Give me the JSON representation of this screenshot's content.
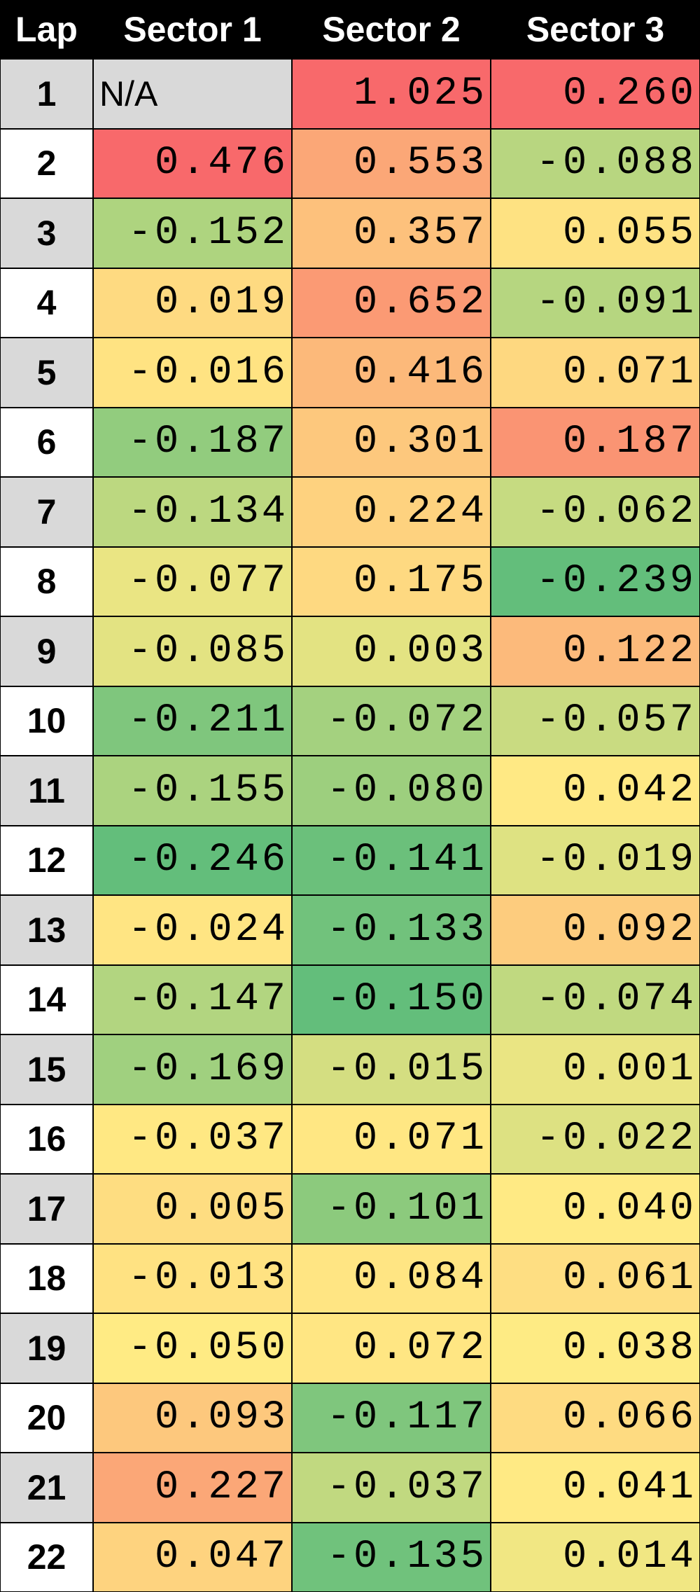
{
  "table": {
    "header": [
      "Lap",
      "Sector 1",
      "Sector 2",
      "Sector 3"
    ],
    "rows": [
      [
        "1",
        "N/A",
        "1.025",
        "0.260"
      ],
      [
        "2",
        "0.476",
        "0.553",
        "-0.088"
      ],
      [
        "3",
        "-0.152",
        "0.357",
        "0.055"
      ],
      [
        "4",
        "0.019",
        "0.652",
        "-0.091"
      ],
      [
        "5",
        "-0.016",
        "0.416",
        "0.071"
      ],
      [
        "6",
        "-0.187",
        "0.301",
        "0.187"
      ],
      [
        "7",
        "-0.134",
        "0.224",
        "-0.062"
      ],
      [
        "8",
        "-0.077",
        "0.175",
        "-0.239"
      ],
      [
        "9",
        "-0.085",
        "0.003",
        "0.122"
      ],
      [
        "10",
        "-0.211",
        "-0.072",
        "-0.057"
      ],
      [
        "11",
        "-0.155",
        "-0.080",
        "0.042"
      ],
      [
        "12",
        "-0.246",
        "-0.141",
        "-0.019"
      ],
      [
        "13",
        "-0.024",
        "-0.133",
        "0.092"
      ],
      [
        "14",
        "-0.147",
        "-0.150",
        "-0.074"
      ],
      [
        "15",
        "-0.169",
        "-0.015",
        "0.001"
      ],
      [
        "16",
        "-0.037",
        "0.071",
        "-0.022"
      ],
      [
        "17",
        "0.005",
        "-0.101",
        "0.040"
      ],
      [
        "18",
        "-0.013",
        "0.084",
        "0.061"
      ],
      [
        "19",
        "-0.050",
        "0.072",
        "0.038"
      ],
      [
        "20",
        "0.093",
        "-0.117",
        "0.066"
      ],
      [
        "21",
        "0.227",
        "-0.037",
        "0.041"
      ],
      [
        "22",
        "0.047",
        "-0.135",
        "0.014"
      ]
    ]
  }
}
